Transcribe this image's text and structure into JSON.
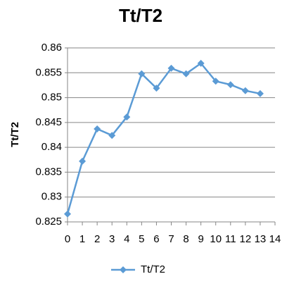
{
  "chart_data": {
    "type": "line",
    "title": "Tt/T2",
    "y_label": "Tt/T2",
    "x": [
      0,
      1,
      2,
      3,
      4,
      5,
      6,
      7,
      8,
      9,
      10,
      11,
      12,
      13
    ],
    "series": [
      {
        "name": "Tt/T2",
        "color": "#5b9bd5",
        "values": [
          0.8266,
          0.8372,
          0.8437,
          0.8424,
          0.8461,
          0.8548,
          0.8519,
          0.8559,
          0.8548,
          0.8569,
          0.8533,
          0.8526,
          0.8514,
          0.8508
        ]
      }
    ],
    "xlim": [
      0,
      14
    ],
    "xticks": [
      0,
      1,
      2,
      3,
      4,
      5,
      6,
      7,
      8,
      9,
      10,
      11,
      12,
      13,
      14
    ],
    "ylim": [
      0.825,
      0.86
    ],
    "yticks": [
      0.825,
      0.83,
      0.835,
      0.84,
      0.845,
      0.85,
      0.855,
      0.86
    ],
    "grid": true,
    "legend": "bottom"
  }
}
